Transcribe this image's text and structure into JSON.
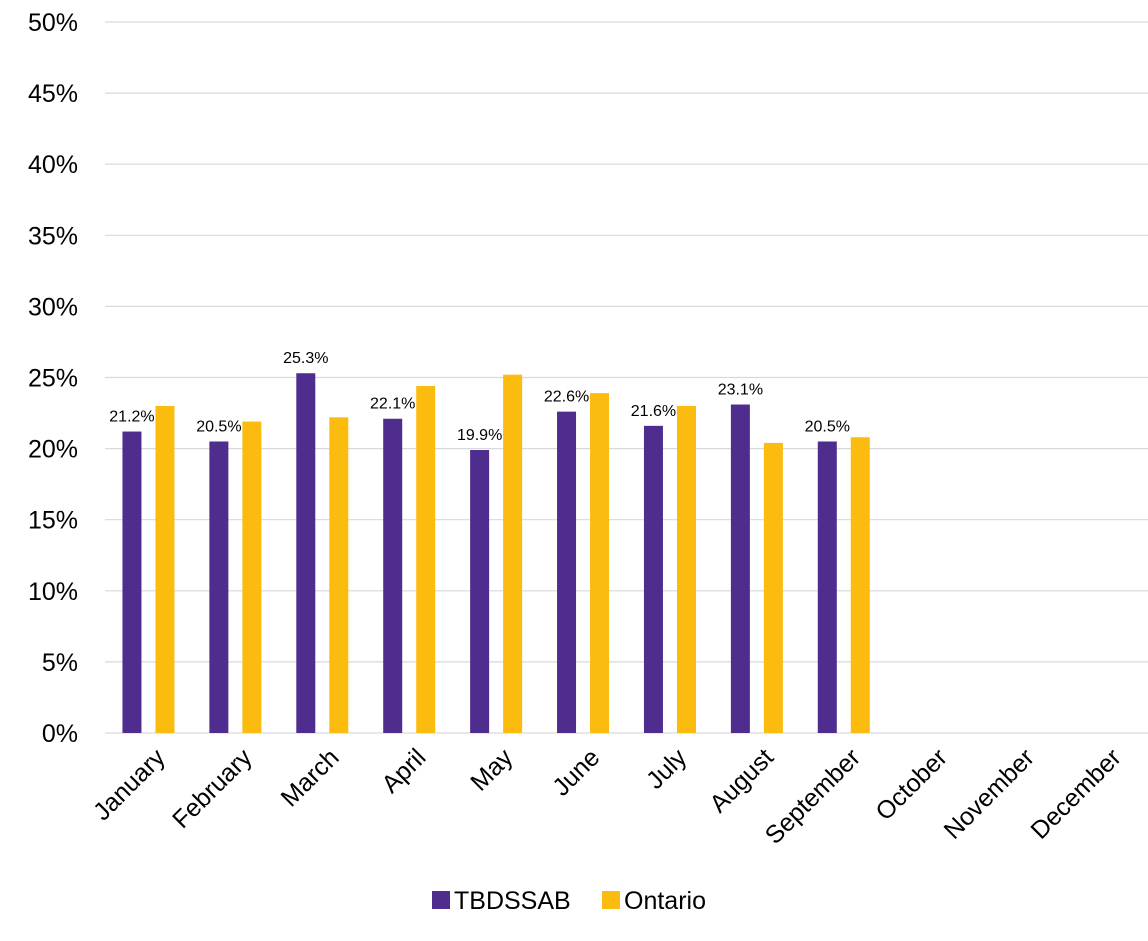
{
  "chart_data": {
    "type": "bar",
    "title": "",
    "xlabel": "",
    "ylabel": "",
    "categories": [
      "January",
      "February",
      "March",
      "April",
      "May",
      "June",
      "July",
      "August",
      "September",
      "October",
      "November",
      "December"
    ],
    "series": [
      {
        "name": "TBDSSAB",
        "color": "#4e2d8e",
        "values": [
          21.2,
          20.5,
          25.3,
          22.1,
          19.9,
          22.6,
          21.6,
          23.1,
          20.5,
          null,
          null,
          null
        ],
        "data_labels": [
          "21.2%",
          "20.5%",
          "25.3%",
          "22.1%",
          "19.9%",
          "22.6%",
          "21.6%",
          "23.1%",
          "20.5%",
          "",
          "",
          ""
        ]
      },
      {
        "name": "Ontario",
        "color": "#fbbc0f",
        "values": [
          23.0,
          21.9,
          22.2,
          24.4,
          25.2,
          23.9,
          23.0,
          20.4,
          20.8,
          null,
          null,
          null
        ]
      }
    ],
    "ylim": [
      0,
      50
    ],
    "yticks": [
      0,
      5,
      10,
      15,
      20,
      25,
      30,
      35,
      40,
      45,
      50
    ],
    "ytick_labels": [
      "0%",
      "5%",
      "10%",
      "15%",
      "20%",
      "25%",
      "30%",
      "35%",
      "40%",
      "45%",
      "50%"
    ],
    "grid": true,
    "legend_position": "bottom"
  }
}
